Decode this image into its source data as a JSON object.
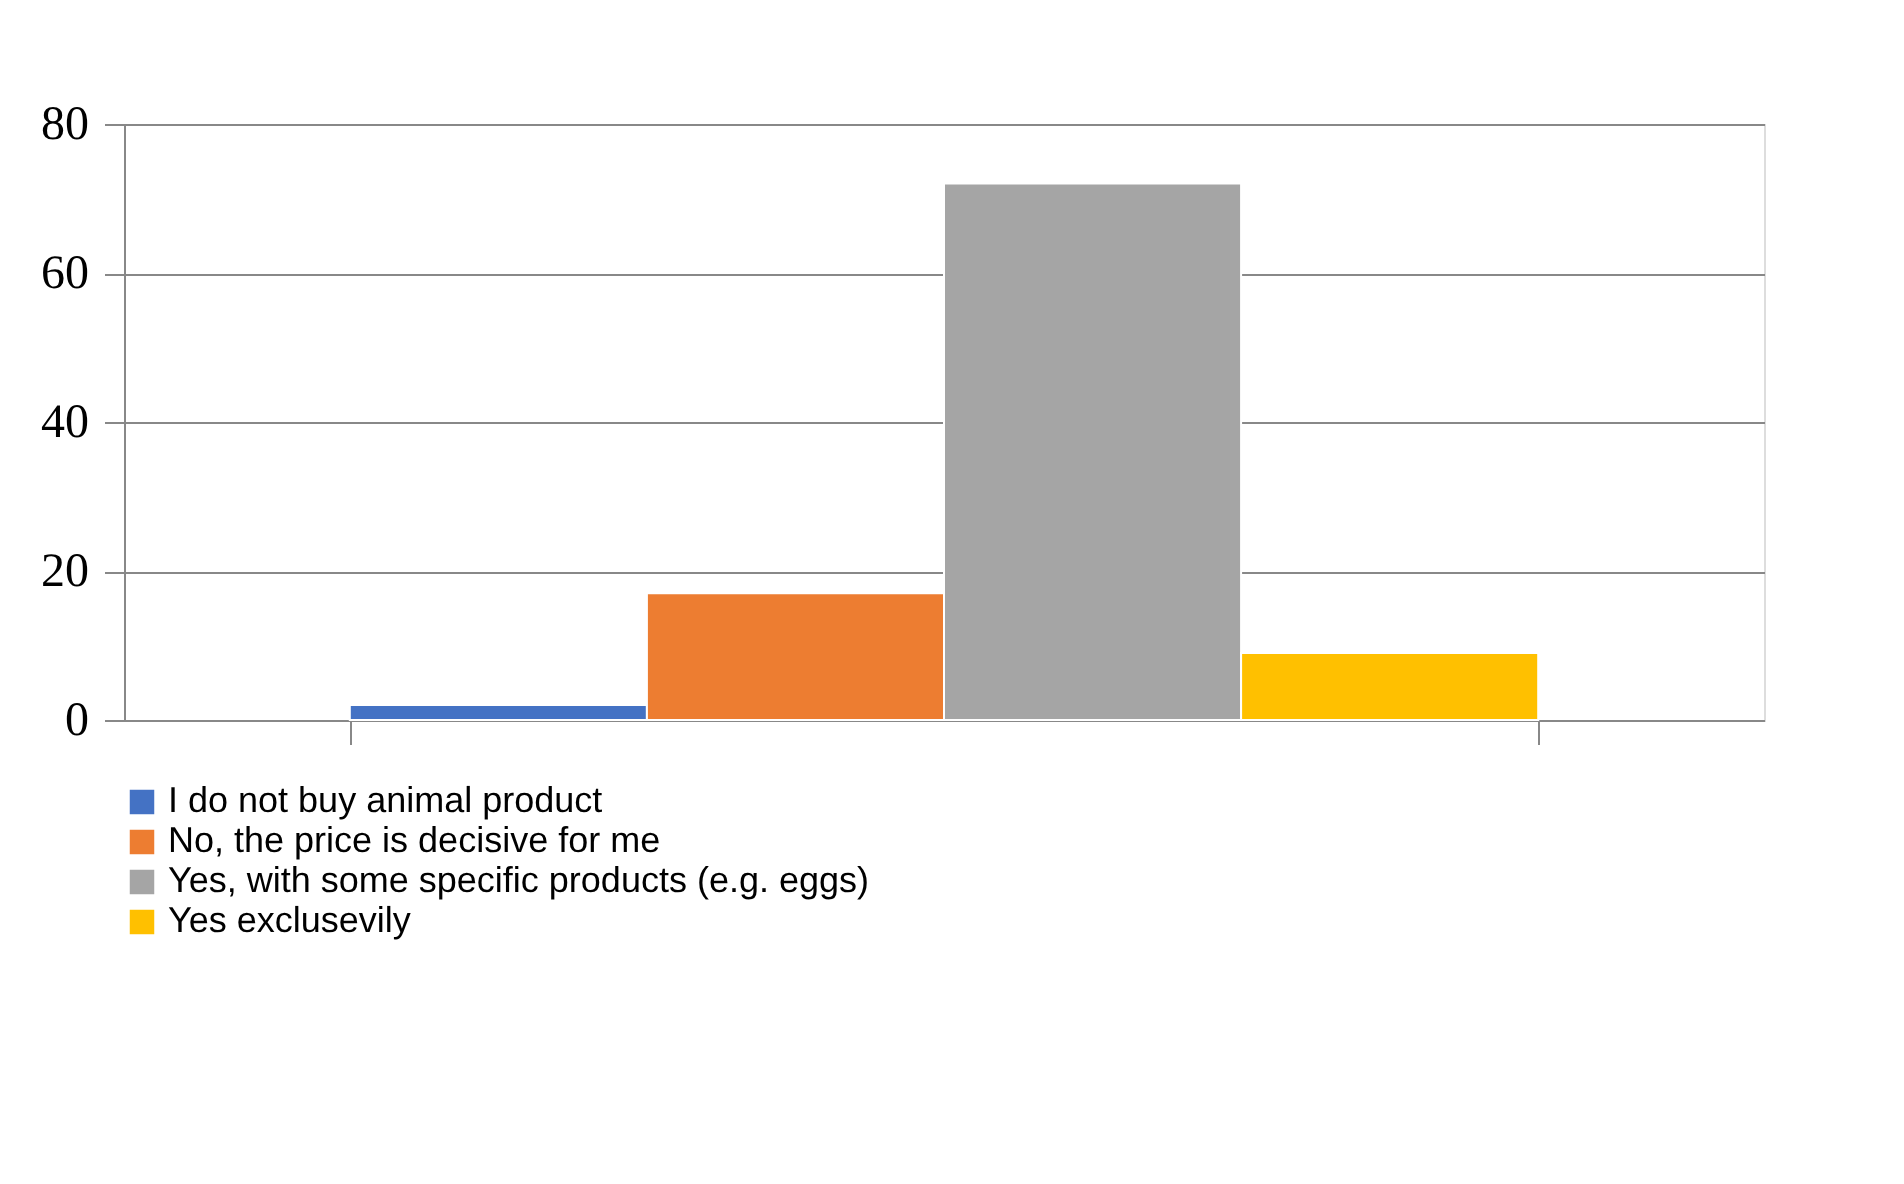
{
  "chart_data": {
    "type": "bar",
    "categories": [
      null
    ],
    "series": [
      {
        "name": "I do not buy animal product",
        "color": "#4472c4",
        "values": [
          2
        ]
      },
      {
        "name": "No, the price is decisive for me",
        "color": "#ed7d31",
        "values": [
          17
        ]
      },
      {
        "name": "Yes, with some specific products (e.g. eggs)",
        "color": "#a5a5a5",
        "values": [
          72
        ]
      },
      {
        "name": "Yes exclusevily",
        "color": "#ffc000",
        "values": [
          9
        ]
      }
    ],
    "ylim": [
      0,
      80
    ],
    "yticks": [
      0,
      20,
      40,
      60,
      80
    ],
    "grid": "y",
    "legend": "bottom"
  }
}
